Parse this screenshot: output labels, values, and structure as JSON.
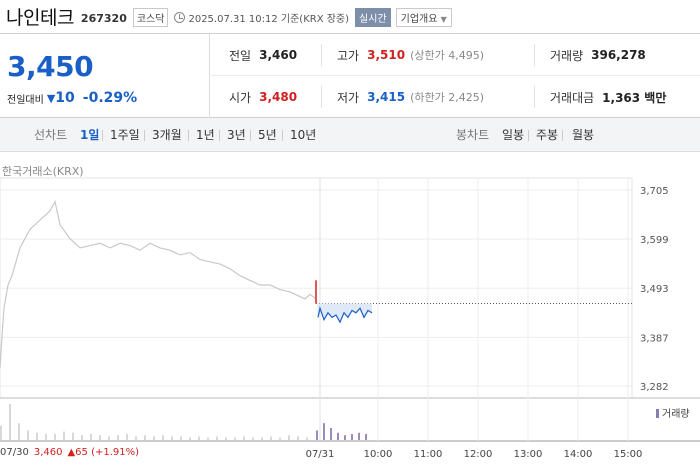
{
  "header": {
    "name": "나인테크",
    "code": "267320",
    "market": "코스닥",
    "time": "2025.07.31 10:12 기준(KRX 장중)",
    "live": "실시간",
    "corp": "기업개요"
  },
  "quote": {
    "price": "3,450",
    "change_label": "전일대비",
    "change_arrow": "▼",
    "change": "10",
    "change_pct": "-0.29%",
    "prev_label": "전일",
    "prev": "3,460",
    "high_label": "고가",
    "high": "3,510",
    "upper_limit": "(상한가 4,495)",
    "volume_label": "거래량",
    "volume": "396,278",
    "open_label": "시가",
    "open": "3,480",
    "low_label": "저가",
    "low": "3,415",
    "lower_limit": "(하한가 2,425)",
    "value_label": "거래대금",
    "value": "1,363 백만"
  },
  "tabs": {
    "line_label": "선차트",
    "line_periods": [
      "1일",
      "1주일",
      "3개월",
      "1년",
      "3년",
      "5년",
      "10년"
    ],
    "active_period": "1일",
    "candle_label": "봉차트",
    "candle_periods": [
      "일봉",
      "주봉",
      "월봉"
    ]
  },
  "chart": {
    "source": "한국거래소(KRX)",
    "volume_label": "거래량",
    "footer_date": "07/30",
    "footer_price": "3,460",
    "footer_change": "▲65 (+1.91%)"
  },
  "chart_data": {
    "type": "line",
    "y_ticks": [
      "3,705",
      "3,599",
      "3,493",
      "3,387",
      "3,282"
    ],
    "x_ticks": [
      "07/30",
      "07/31",
      "10:00",
      "11:00",
      "12:00",
      "13:00",
      "14:00",
      "15:00"
    ],
    "ylim": [
      3282,
      3705
    ],
    "reference_price": 3460,
    "series": [
      {
        "name": "",
        "segment": "07/30",
        "x": [
          0,
          2,
          4,
          8,
          12,
          20,
          30,
          40,
          50,
          55,
          60,
          70,
          80,
          90,
          100,
          110,
          120,
          130,
          140,
          150,
          160,
          170,
          180,
          190,
          200,
          210,
          220,
          230,
          240,
          250,
          260,
          270,
          280,
          290,
          300,
          305,
          310,
          316
        ],
        "y": [
          3320,
          3390,
          3450,
          3500,
          3520,
          3580,
          3620,
          3640,
          3660,
          3680,
          3630,
          3600,
          3580,
          3585,
          3590,
          3580,
          3590,
          3585,
          3575,
          3590,
          3580,
          3575,
          3565,
          3570,
          3555,
          3550,
          3545,
          3535,
          3520,
          3510,
          3500,
          3500,
          3490,
          3485,
          3475,
          3470,
          3480,
          3470
        ]
      },
      {
        "name": "",
        "segment": "07/31",
        "x": [
          316,
          318,
          320,
          324,
          328,
          332,
          336,
          340,
          344,
          348,
          352,
          356,
          360,
          364,
          368,
          372
        ],
        "y": [
          3510,
          3430,
          3450,
          3425,
          3440,
          3430,
          3435,
          3420,
          3440,
          3430,
          3445,
          3440,
          3450,
          3430,
          3445,
          3440
        ]
      }
    ],
    "volume": [
      12,
      30,
      14,
      8,
      6,
      5,
      5,
      7,
      6,
      4,
      5,
      4,
      3,
      4,
      5,
      3,
      4,
      3,
      4,
      3,
      3,
      2,
      3,
      2,
      3,
      2,
      2,
      3,
      2,
      2,
      3,
      2,
      4,
      3,
      2,
      8,
      14,
      10,
      6,
      4,
      5,
      6,
      5
    ],
    "legend": "bottom-right",
    "grid": true
  }
}
